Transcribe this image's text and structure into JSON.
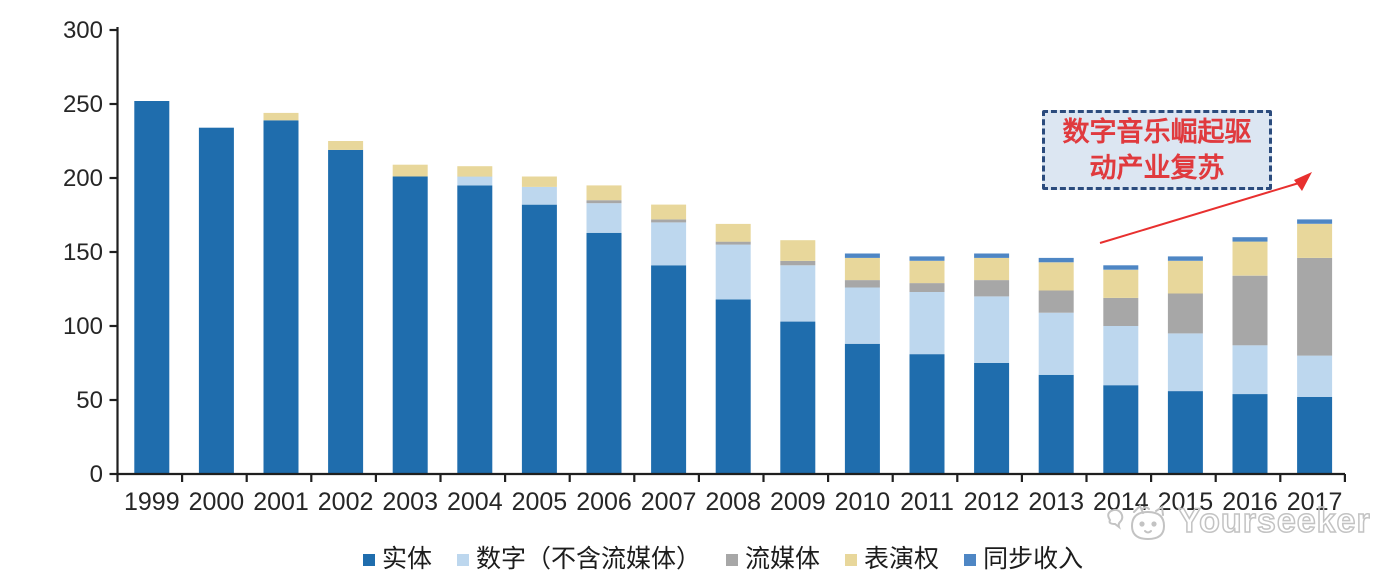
{
  "chart_data": {
    "type": "bar",
    "stacked": true,
    "title": "",
    "categories": [
      "1999",
      "2000",
      "2001",
      "2002",
      "2003",
      "2004",
      "2005",
      "2006",
      "2007",
      "2008",
      "2009",
      "2010",
      "2011",
      "2012",
      "2013",
      "2014",
      "2015",
      "2016",
      "2017"
    ],
    "series": [
      {
        "name": "实体",
        "color": "#1F6DAD",
        "values": [
          252,
          234,
          239,
          219,
          201,
          195,
          182,
          163,
          141,
          118,
          103,
          88,
          81,
          75,
          67,
          60,
          56,
          54,
          52
        ]
      },
      {
        "name": "数字（不含流媒体）",
        "color": "#BDD7EE",
        "values": [
          0,
          0,
          0,
          0,
          0,
          6,
          12,
          20,
          29,
          37,
          38,
          38,
          42,
          45,
          42,
          40,
          39,
          33,
          28
        ]
      },
      {
        "name": "流媒体",
        "color": "#A7A7A7",
        "values": [
          0,
          0,
          0,
          0,
          0,
          0,
          0,
          2,
          2,
          2,
          3,
          5,
          6,
          11,
          15,
          19,
          27,
          47,
          66
        ]
      },
      {
        "name": "表演权",
        "color": "#E8D79B",
        "values": [
          0,
          0,
          5,
          6,
          8,
          7,
          7,
          10,
          10,
          12,
          14,
          15,
          15,
          15,
          19,
          19,
          22,
          23,
          23
        ]
      },
      {
        "name": "同步收入",
        "color": "#4E86C4",
        "values": [
          0,
          0,
          0,
          0,
          0,
          0,
          0,
          0,
          0,
          0,
          0,
          3,
          3,
          3,
          3,
          3,
          3,
          3,
          3
        ]
      }
    ],
    "ylim": [
      0,
      300
    ],
    "yticks": [
      0,
      50,
      100,
      150,
      200,
      250,
      300
    ],
    "grid": false,
    "legend_position": "bottom",
    "axis_color": "#1F1F1F",
    "tick_label_color": "#262626"
  },
  "annotation": {
    "line1": "数字音乐崛起驱",
    "line2": "动产业复苏",
    "text_color": "#E03A3E",
    "box_fill": "#DCE6F2",
    "border_color": "#2B4B7D",
    "arrow_color": "#E8302F"
  },
  "watermark": {
    "text": "Yourseeker",
    "logo": "cat-logo",
    "color": "#C3C3C3"
  }
}
